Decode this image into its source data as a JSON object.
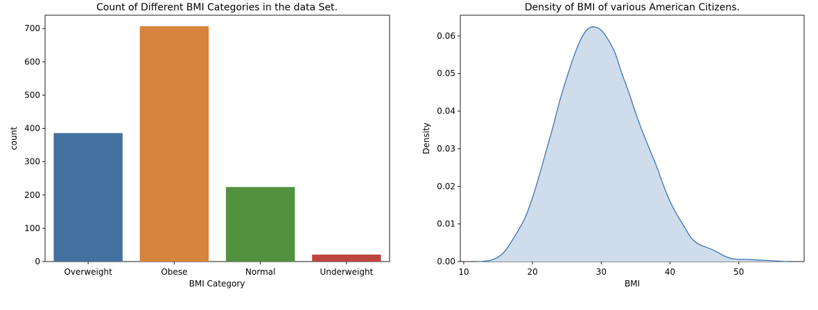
{
  "chart_data": [
    {
      "type": "bar",
      "title": "Count of Different BMI Categories in the data Set.",
      "xlabel": "BMI Category",
      "ylabel": "count",
      "categories": [
        "Overweight",
        "Obese",
        "Normal",
        "Underweight"
      ],
      "values": [
        386,
        707,
        224,
        21
      ],
      "colors": [
        "#4472a0",
        "#d8843c",
        "#52923f",
        "#bf4540"
      ],
      "ylim": [
        0,
        740
      ],
      "yticks": [
        0,
        100,
        200,
        300,
        400,
        500,
        600,
        700
      ],
      "grid": false
    },
    {
      "type": "area",
      "title": "Density of BMI of various American Citizens.",
      "xlabel": "BMI",
      "ylabel": "Density",
      "xlim": [
        9.5,
        59.5
      ],
      "ylim": [
        0,
        0.0655
      ],
      "xticks": [
        10,
        20,
        30,
        40,
        50
      ],
      "yticks": [
        0.0,
        0.01,
        0.02,
        0.03,
        0.04,
        0.05,
        0.06
      ],
      "ytick_labels": [
        "0.00",
        "0.01",
        "0.02",
        "0.03",
        "0.04",
        "0.05",
        "0.06"
      ],
      "x": [
        12,
        13,
        14,
        15,
        16,
        17,
        18,
        19,
        20,
        21,
        22,
        23,
        24,
        25,
        26,
        27,
        28,
        29,
        30,
        31,
        32,
        33,
        34,
        35,
        36,
        37,
        38,
        39,
        40,
        41,
        42,
        43,
        44,
        45,
        46,
        47,
        48,
        49,
        50,
        51,
        52,
        53,
        54,
        55,
        56,
        57
      ],
      "y": [
        0.0,
        0.0001,
        0.0004,
        0.0012,
        0.0028,
        0.0055,
        0.0085,
        0.012,
        0.017,
        0.023,
        0.0295,
        0.036,
        0.043,
        0.049,
        0.0545,
        0.059,
        0.0618,
        0.0624,
        0.0615,
        0.059,
        0.0555,
        0.05,
        0.045,
        0.0395,
        0.0345,
        0.03,
        0.0255,
        0.0205,
        0.016,
        0.0125,
        0.0095,
        0.0065,
        0.0048,
        0.004,
        0.0033,
        0.0024,
        0.0014,
        0.0008,
        0.0006,
        0.0006,
        0.0005,
        0.0004,
        0.0003,
        0.0002,
        0.0001,
        0.0
      ],
      "fill_color": "#cfdcec",
      "line_color": "#3b73b0",
      "grid": false
    }
  ]
}
